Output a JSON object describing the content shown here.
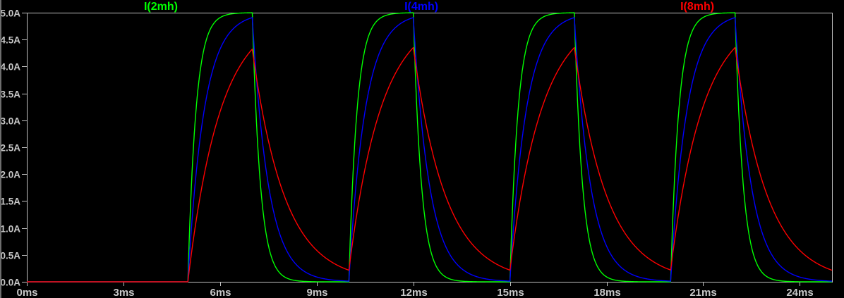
{
  "window": {
    "background": "#000000",
    "left_edge_color": "#6e6e6e"
  },
  "plot": {
    "frame_color": "#c0c0c0",
    "tick_color": "#c0c0c0",
    "text_color": "#c8c8c8",
    "background": "#000000"
  },
  "chart_data": {
    "type": "line",
    "title": "",
    "x_unit": "ms",
    "y_unit": "A",
    "xlim": [
      0,
      25
    ],
    "ylim": [
      0,
      5
    ],
    "grid": "border-only",
    "legend_position": "top-inside",
    "x_ticks": [
      {
        "value": 0,
        "label": "0ms"
      },
      {
        "value": 3,
        "label": "3ms"
      },
      {
        "value": 6,
        "label": "6ms"
      },
      {
        "value": 9,
        "label": "9ms"
      },
      {
        "value": 12,
        "label": "12ms"
      },
      {
        "value": 15,
        "label": "15ms"
      },
      {
        "value": 18,
        "label": "18ms"
      },
      {
        "value": 21,
        "label": "21ms"
      },
      {
        "value": 24,
        "label": "24ms"
      }
    ],
    "y_ticks": [
      {
        "value": 0.0,
        "label": "0.0A"
      },
      {
        "value": 0.5,
        "label": "0.5A"
      },
      {
        "value": 1.0,
        "label": "1.0A"
      },
      {
        "value": 1.5,
        "label": "1.5A"
      },
      {
        "value": 2.0,
        "label": "2.0A"
      },
      {
        "value": 2.5,
        "label": "2.5A"
      },
      {
        "value": 3.0,
        "label": "3.0A"
      },
      {
        "value": 3.5,
        "label": "3.5A"
      },
      {
        "value": 4.0,
        "label": "4.0A"
      },
      {
        "value": 4.5,
        "label": "4.5A"
      },
      {
        "value": 5.0,
        "label": "5.0A"
      }
    ],
    "legend": [
      {
        "label": "I(2mh)",
        "color": "#00ff00"
      },
      {
        "label": "I(4mh)",
        "color": "#0000ff"
      },
      {
        "label": "I(8mh)",
        "color": "#ff0000"
      }
    ],
    "excitation": {
      "pulse_start_ms": 5,
      "on_time_ms": 2,
      "period_ms": 5,
      "cycles": 4,
      "steady_current_A": 5
    },
    "series": [
      {
        "name": "I(2mh)",
        "color": "#00ff00",
        "tau_ms": 0.25,
        "peaks": [
          {
            "t_ms": 7,
            "i_A": 5.0
          },
          {
            "t_ms": 12,
            "i_A": 5.0
          },
          {
            "t_ms": 17,
            "i_A": 5.0
          },
          {
            "t_ms": 22,
            "i_A": 5.0
          }
        ],
        "valleys": [
          {
            "t_ms": 10,
            "i_A": 0.0
          },
          {
            "t_ms": 15,
            "i_A": 0.0
          },
          {
            "t_ms": 20,
            "i_A": 0.0
          },
          {
            "t_ms": 25,
            "i_A": 0.0
          }
        ]
      },
      {
        "name": "I(4mh)",
        "color": "#0000ff",
        "tau_ms": 0.5,
        "peaks": [
          {
            "t_ms": 7,
            "i_A": 4.91
          },
          {
            "t_ms": 12,
            "i_A": 4.91
          },
          {
            "t_ms": 17,
            "i_A": 4.91
          },
          {
            "t_ms": 22,
            "i_A": 4.91
          }
        ],
        "valleys": [
          {
            "t_ms": 10,
            "i_A": 0.01
          },
          {
            "t_ms": 15,
            "i_A": 0.01
          },
          {
            "t_ms": 20,
            "i_A": 0.01
          },
          {
            "t_ms": 25,
            "i_A": 0.01
          }
        ]
      },
      {
        "name": "I(8mh)",
        "color": "#ff0000",
        "tau_ms": 1.0,
        "peaks": [
          {
            "t_ms": 7,
            "i_A": 4.32
          },
          {
            "t_ms": 12,
            "i_A": 4.35
          },
          {
            "t_ms": 17,
            "i_A": 4.35
          },
          {
            "t_ms": 22,
            "i_A": 4.35
          }
        ],
        "valleys": [
          {
            "t_ms": 10,
            "i_A": 0.22
          },
          {
            "t_ms": 15,
            "i_A": 0.22
          },
          {
            "t_ms": 20,
            "i_A": 0.22
          },
          {
            "t_ms": 25,
            "i_A": 0.22
          }
        ]
      }
    ]
  }
}
